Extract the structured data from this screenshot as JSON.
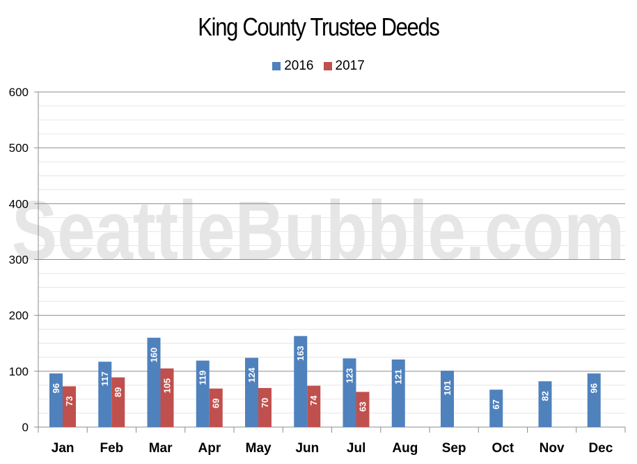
{
  "chart_data": {
    "type": "bar",
    "title": "King County Trustee Deeds",
    "watermark": "SeattleBubble.com",
    "categories": [
      "Jan",
      "Feb",
      "Mar",
      "Apr",
      "May",
      "Jun",
      "Jul",
      "Aug",
      "Sep",
      "Oct",
      "Nov",
      "Dec"
    ],
    "series": [
      {
        "name": "2016",
        "color": "#4f81bd",
        "values": [
          96,
          117,
          160,
          119,
          124,
          163,
          123,
          121,
          101,
          67,
          82,
          96
        ]
      },
      {
        "name": "2017",
        "color": "#c0504d",
        "values": [
          73,
          89,
          105,
          69,
          70,
          74,
          63,
          null,
          null,
          null,
          null,
          null
        ]
      }
    ],
    "y_ticks": [
      0,
      100,
      200,
      300,
      400,
      500,
      600
    ],
    "ylim": [
      0,
      600
    ],
    "xlabel": "",
    "ylabel": "",
    "grid": "horizontal",
    "legend_position": "top-center",
    "data_labels": "inside-bar-vertical"
  }
}
